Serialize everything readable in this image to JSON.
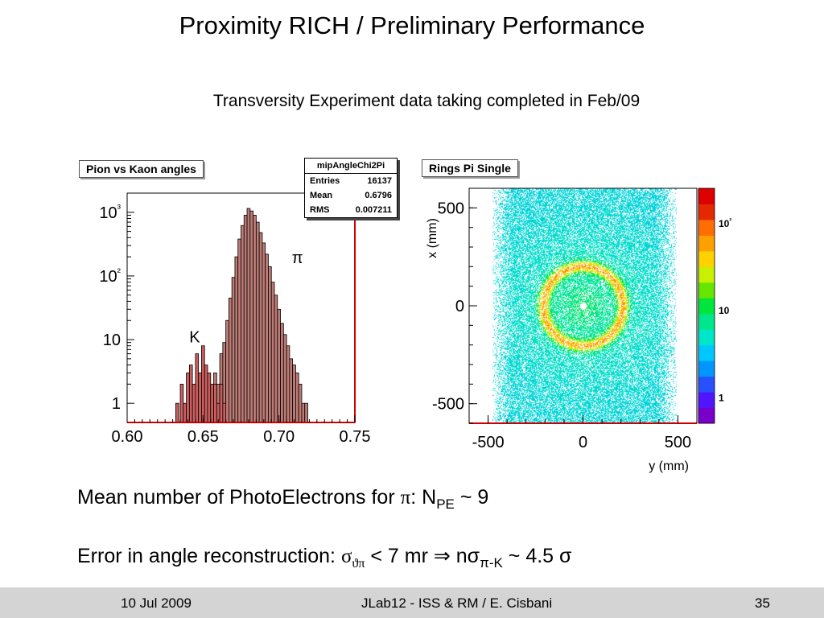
{
  "slide": {
    "title": "Proximity RICH / Preliminary Performance",
    "subtitle": "Transversity Experiment data taking completed in Feb/09"
  },
  "left_plot": {
    "panel_label": "Pion vs Kaon angles",
    "stats": {
      "name": "mipAngleChi2Pi",
      "rows": [
        {
          "label": "Entries",
          "value": "16137"
        },
        {
          "label": "Mean",
          "value": "0.6796"
        },
        {
          "label": "RMS",
          "value": "0.007211"
        }
      ]
    },
    "pion_label": "π",
    "kaon_label": "K",
    "x_ticks": [
      "0.60",
      "0.65",
      "0.70",
      "0.75"
    ],
    "y_ticks": [
      "10³",
      "10²",
      "10",
      "1"
    ]
  },
  "right_plot": {
    "panel_label": "Rings Pi Single",
    "y_axis_title": "x (mm)",
    "x_axis_title": "y (mm)",
    "y_ticks": [
      "500",
      "0",
      "-500"
    ],
    "x_ticks": [
      "-500",
      "0",
      "500"
    ],
    "z_ticks": [
      "10²",
      "10",
      "1"
    ]
  },
  "chart_data": [
    {
      "type": "histogram",
      "title": "Pion vs Kaon angles",
      "xlabel": "",
      "ylabel": "",
      "xlim": [
        0.6,
        0.75
      ],
      "ylog": true,
      "ylim": [
        0.5,
        2000
      ],
      "series": [
        {
          "name": "π",
          "color": "#bc7b74",
          "x": [
            0.655,
            0.658,
            0.66,
            0.662,
            0.664,
            0.666,
            0.668,
            0.67,
            0.672,
            0.674,
            0.676,
            0.678,
            0.68,
            0.682,
            0.684,
            0.686,
            0.688,
            0.69,
            0.692,
            0.694,
            0.696,
            0.698,
            0.7,
            0.702,
            0.704,
            0.706,
            0.708,
            0.71,
            0.712,
            0.714,
            0.716,
            0.718
          ],
          "y": [
            1,
            3,
            2,
            6,
            9,
            20,
            45,
            95,
            200,
            380,
            620,
            900,
            1150,
            1050,
            900,
            700,
            480,
            330,
            220,
            140,
            80,
            50,
            30,
            18,
            12,
            8,
            5,
            4,
            3,
            2,
            1,
            1
          ]
        },
        {
          "name": "K",
          "color": "#cc5e5e",
          "x": [
            0.633,
            0.636,
            0.638,
            0.64,
            0.642,
            0.644,
            0.646,
            0.648,
            0.65,
            0.652,
            0.654,
            0.656,
            0.658,
            0.66,
            0.662,
            0.664
          ],
          "y": [
            1,
            2,
            1,
            3,
            4,
            2,
            6,
            3,
            8,
            4,
            3,
            2,
            2,
            1,
            2,
            1
          ]
        }
      ]
    },
    {
      "type": "heatmap",
      "title": "Rings Pi Single",
      "xlabel": "y (mm)",
      "ylabel": "x (mm)",
      "xlim": [
        -600,
        600
      ],
      "ylim": [
        -600,
        600
      ],
      "zlog": true,
      "zlim": [
        0.5,
        250
      ],
      "description_of_distribution": {
        "ring_radius_mm": 210,
        "band_y_range_mm": [
          -480,
          490
        ],
        "central_hole_radius_mm": 18
      }
    }
  ],
  "bullets": {
    "b1_text": "Mean number of PhotoElectrons for ",
    "b1_pi": "π",
    "b1_rest": ": N",
    "b1_sub": "PE",
    "b1_end": " ~ 9",
    "b2_text": "Error in angle reconstruction: ",
    "b2_sigma": "σ",
    "b2_sub1": "ϑπ",
    "b2_mid": " < 7 mr ",
    "b2_arrow": "⇒",
    "b2_n": " nσ",
    "b2_sub2": "π-K",
    "b2_end": " ~ 4.5 σ"
  },
  "footer": {
    "date": "10 Jul 2009",
    "center": "JLab12 - ISS & RM / E. Cisbani",
    "page": "35"
  }
}
